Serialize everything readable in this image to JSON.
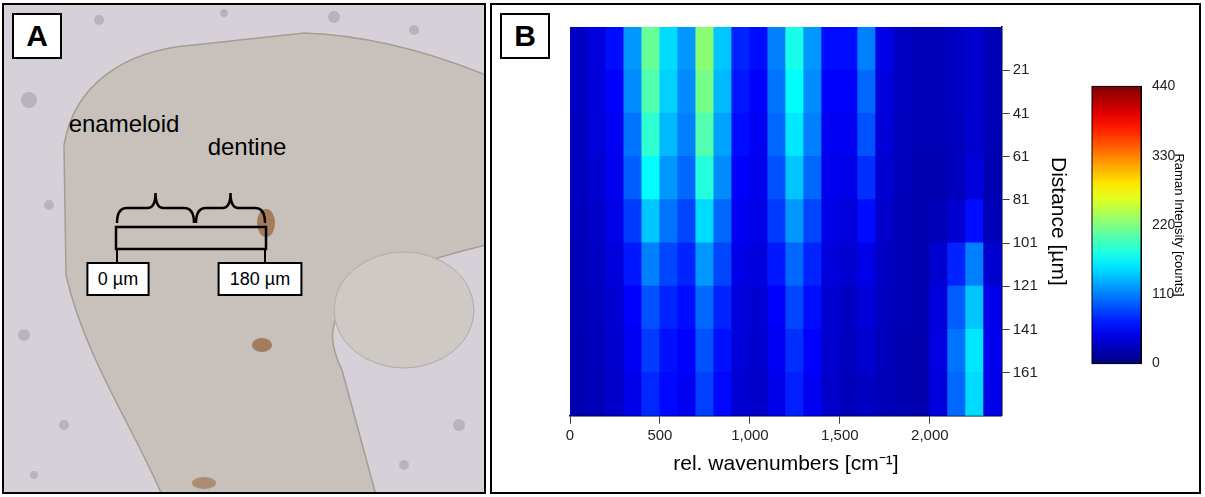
{
  "panel_a": {
    "letter": "A",
    "regions": [
      "enameloid",
      "dentine"
    ],
    "scale_start": "0 µm",
    "scale_end": "180 µm"
  },
  "panel_b": {
    "letter": "B"
  },
  "chart_data": {
    "type": "heatmap",
    "x_label": "rel. wavenumbers [cm⁻¹]",
    "y_label": "Distance [µm]",
    "x": [
      50,
      150,
      250,
      350,
      450,
      550,
      650,
      750,
      850,
      950,
      1050,
      1150,
      1250,
      1350,
      1450,
      1550,
      1650,
      1750,
      1850,
      1950,
      2050,
      2150,
      2250,
      2350
    ],
    "y": [
      11,
      31,
      51,
      71,
      91,
      111,
      131,
      151,
      171
    ],
    "cells": [
      [
        30,
        40,
        60,
        120,
        210,
        150,
        120,
        225,
        140,
        70,
        60,
        110,
        175,
        120,
        60,
        60,
        110,
        45,
        30,
        25,
        25,
        30,
        35,
        25
      ],
      [
        30,
        40,
        55,
        115,
        200,
        145,
        115,
        215,
        135,
        65,
        55,
        105,
        165,
        115,
        55,
        55,
        100,
        40,
        30,
        25,
        25,
        30,
        35,
        25
      ],
      [
        28,
        38,
        50,
        105,
        185,
        135,
        110,
        200,
        125,
        60,
        50,
        100,
        155,
        110,
        50,
        50,
        90,
        38,
        28,
        24,
        24,
        28,
        35,
        24
      ],
      [
        28,
        35,
        48,
        95,
        165,
        120,
        100,
        180,
        115,
        55,
        48,
        90,
        140,
        100,
        48,
        45,
        75,
        35,
        26,
        22,
        22,
        26,
        40,
        22
      ],
      [
        26,
        32,
        45,
        80,
        140,
        105,
        85,
        150,
        100,
        50,
        45,
        80,
        120,
        85,
        45,
        40,
        60,
        32,
        25,
        22,
        25,
        35,
        60,
        25
      ],
      [
        25,
        30,
        40,
        65,
        110,
        85,
        70,
        120,
        85,
        45,
        40,
        65,
        100,
        70,
        40,
        35,
        45,
        30,
        25,
        22,
        35,
        70,
        110,
        35
      ],
      [
        24,
        28,
        36,
        55,
        90,
        70,
        60,
        100,
        70,
        40,
        36,
        55,
        85,
        60,
        36,
        30,
        38,
        28,
        24,
        22,
        40,
        95,
        140,
        45
      ],
      [
        22,
        26,
        34,
        50,
        80,
        62,
        55,
        90,
        62,
        38,
        34,
        50,
        75,
        55,
        34,
        28,
        34,
        26,
        22,
        20,
        42,
        105,
        155,
        48
      ],
      [
        22,
        25,
        32,
        45,
        72,
        58,
        50,
        82,
        58,
        36,
        32,
        46,
        68,
        50,
        32,
        26,
        30,
        25,
        22,
        20,
        40,
        100,
        150,
        45
      ]
    ],
    "xlim": [
      0,
      2400
    ],
    "xticks": [
      0,
      500,
      1000,
      1500,
      2000
    ],
    "ylim": [
      1,
      181
    ],
    "yticks": [
      21,
      41,
      61,
      81,
      101,
      121,
      141,
      161
    ],
    "colorbar": {
      "label": "Raman Intensity [counts]",
      "range": [
        0,
        440
      ],
      "ticks": [
        0,
        110,
        220,
        330,
        440
      ]
    },
    "grid": true
  }
}
